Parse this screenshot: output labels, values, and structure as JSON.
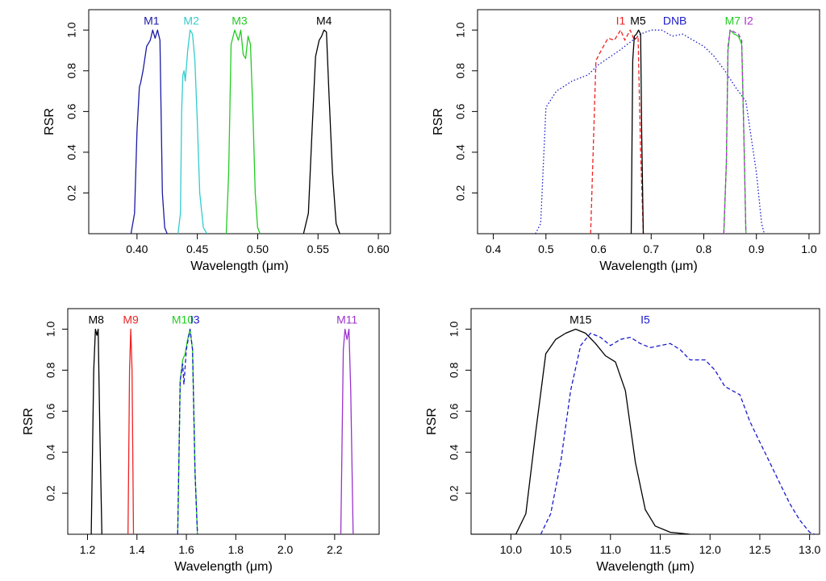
{
  "chart_data": [
    {
      "type": "line",
      "xlabel": "Wavelength (μm)",
      "ylabel": "RSR",
      "xlim": [
        0.36,
        0.61
      ],
      "ylim": [
        0,
        1.1
      ],
      "xticks": [
        0.4,
        0.45,
        0.5,
        0.55,
        0.6
      ],
      "xtick_labels": [
        "0.40",
        "0.45",
        "0.50",
        "0.55",
        "0.60"
      ],
      "yticks": [
        0.2,
        0.4,
        0.6,
        0.8,
        1.0
      ],
      "ytick_labels": [
        "0.2",
        "0.4",
        "0.6",
        "0.8",
        "1.0"
      ],
      "series": [
        {
          "name": "M1",
          "color": "#1a1aa6",
          "dash": "solid",
          "label_at": [
            0.412,
            1.0
          ],
          "points": [
            [
              0.395,
              0
            ],
            [
              0.398,
              0.1
            ],
            [
              0.4,
              0.5
            ],
            [
              0.402,
              0.72
            ],
            [
              0.403,
              0.74
            ],
            [
              0.405,
              0.8
            ],
            [
              0.408,
              0.92
            ],
            [
              0.411,
              0.95
            ],
            [
              0.413,
              1.0
            ],
            [
              0.415,
              0.96
            ],
            [
              0.417,
              1.0
            ],
            [
              0.419,
              0.95
            ],
            [
              0.421,
              0.2
            ],
            [
              0.423,
              0.03
            ],
            [
              0.425,
              0
            ]
          ]
        },
        {
          "name": "M2",
          "color": "#33cccc",
          "dash": "solid",
          "label_at": [
            0.445,
            1.0
          ],
          "points": [
            [
              0.434,
              0
            ],
            [
              0.436,
              0.1
            ],
            [
              0.437,
              0.6
            ],
            [
              0.438,
              0.78
            ],
            [
              0.439,
              0.8
            ],
            [
              0.44,
              0.75
            ],
            [
              0.442,
              0.9
            ],
            [
              0.444,
              1.0
            ],
            [
              0.446,
              0.98
            ],
            [
              0.448,
              0.85
            ],
            [
              0.45,
              0.55
            ],
            [
              0.452,
              0.2
            ],
            [
              0.455,
              0.03
            ],
            [
              0.458,
              0
            ]
          ]
        },
        {
          "name": "M3",
          "color": "#22cc22",
          "dash": "solid",
          "label_at": [
            0.485,
            1.0
          ],
          "points": [
            [
              0.474,
              0
            ],
            [
              0.476,
              0.3
            ],
            [
              0.478,
              0.93
            ],
            [
              0.481,
              1.0
            ],
            [
              0.484,
              0.95
            ],
            [
              0.486,
              1.0
            ],
            [
              0.488,
              0.88
            ],
            [
              0.49,
              0.86
            ],
            [
              0.492,
              0.97
            ],
            [
              0.494,
              0.93
            ],
            [
              0.496,
              0.6
            ],
            [
              0.498,
              0.2
            ],
            [
              0.5,
              0.03
            ],
            [
              0.502,
              0
            ]
          ]
        },
        {
          "name": "M4",
          "color": "#000000",
          "dash": "solid",
          "label_at": [
            0.555,
            1.0
          ],
          "points": [
            [
              0.538,
              0
            ],
            [
              0.542,
              0.1
            ],
            [
              0.545,
              0.5
            ],
            [
              0.548,
              0.87
            ],
            [
              0.551,
              0.95
            ],
            [
              0.553,
              0.97
            ],
            [
              0.555,
              1.0
            ],
            [
              0.557,
              0.99
            ],
            [
              0.559,
              0.7
            ],
            [
              0.562,
              0.3
            ],
            [
              0.565,
              0.05
            ],
            [
              0.568,
              0
            ]
          ]
        }
      ]
    },
    {
      "type": "line",
      "xlabel": "Wavelength (μm)",
      "ylabel": "RSR",
      "xlim": [
        0.37,
        1.02
      ],
      "ylim": [
        0,
        1.1
      ],
      "xticks": [
        0.4,
        0.5,
        0.6,
        0.7,
        0.8,
        0.9,
        1.0
      ],
      "xtick_labels": [
        "0.4",
        "0.5",
        "0.6",
        "0.7",
        "0.8",
        "0.9",
        "1.0"
      ],
      "yticks": [
        0.2,
        0.4,
        0.6,
        0.8,
        1.0
      ],
      "ytick_labels": [
        "0.2",
        "0.4",
        "0.6",
        "0.8",
        "1.0"
      ],
      "series": [
        {
          "name": "DNB",
          "color": "#1a1acc",
          "dash": "1.5,2.5",
          "label_at": [
            0.745,
            1.0
          ],
          "points": [
            [
              0.48,
              0
            ],
            [
              0.49,
              0.05
            ],
            [
              0.5,
              0.62
            ],
            [
              0.52,
              0.7
            ],
            [
              0.55,
              0.75
            ],
            [
              0.58,
              0.78
            ],
            [
              0.6,
              0.83
            ],
            [
              0.64,
              0.9
            ],
            [
              0.68,
              0.98
            ],
            [
              0.7,
              1.0
            ],
            [
              0.72,
              1.0
            ],
            [
              0.74,
              0.97
            ],
            [
              0.76,
              0.98
            ],
            [
              0.78,
              0.95
            ],
            [
              0.8,
              0.92
            ],
            [
              0.82,
              0.87
            ],
            [
              0.84,
              0.8
            ],
            [
              0.86,
              0.72
            ],
            [
              0.88,
              0.65
            ],
            [
              0.9,
              0.3
            ],
            [
              0.91,
              0.05
            ],
            [
              0.915,
              0
            ]
          ]
        },
        {
          "name": "I1",
          "color": "#ee2222",
          "dash": "5,3",
          "label_at": [
            0.642,
            1.0
          ],
          "points": [
            [
              0.585,
              0
            ],
            [
              0.595,
              0.85
            ],
            [
              0.605,
              0.9
            ],
            [
              0.618,
              0.96
            ],
            [
              0.63,
              0.95
            ],
            [
              0.642,
              1.0
            ],
            [
              0.65,
              0.95
            ],
            [
              0.66,
              1.0
            ],
            [
              0.668,
              0.95
            ],
            [
              0.675,
              0.97
            ],
            [
              0.68,
              0.4
            ],
            [
              0.685,
              0
            ]
          ]
        },
        {
          "name": "M5",
          "color": "#000000",
          "dash": "solid",
          "label_at": [
            0.675,
            1.0
          ],
          "points": [
            [
              0.662,
              0
            ],
            [
              0.665,
              0.85
            ],
            [
              0.668,
              0.97
            ],
            [
              0.672,
              0.98
            ],
            [
              0.676,
              1.0
            ],
            [
              0.68,
              0.98
            ],
            [
              0.682,
              0.5
            ],
            [
              0.685,
              0
            ]
          ]
        },
        {
          "name": "M7",
          "color": "#22cc22",
          "dash": "solid",
          "label_at": [
            0.855,
            1.0
          ],
          "points": [
            [
              0.838,
              0
            ],
            [
              0.843,
              0.35
            ],
            [
              0.846,
              0.9
            ],
            [
              0.85,
              1.0
            ],
            [
              0.858,
              0.98
            ],
            [
              0.866,
              0.97
            ],
            [
              0.872,
              0.93
            ],
            [
              0.876,
              0.5
            ],
            [
              0.88,
              0
            ]
          ]
        },
        {
          "name": "I2",
          "color": "#aa33cc",
          "dash": "5,3",
          "label_at": [
            0.885,
            1.0
          ],
          "points": [
            [
              0.838,
              0
            ],
            [
              0.843,
              0.35
            ],
            [
              0.846,
              0.92
            ],
            [
              0.85,
              1.0
            ],
            [
              0.858,
              0.99
            ],
            [
              0.866,
              0.98
            ],
            [
              0.872,
              0.95
            ],
            [
              0.876,
              0.5
            ],
            [
              0.88,
              0
            ]
          ]
        }
      ]
    },
    {
      "type": "line",
      "xlabel": "Wavelength (μm)",
      "ylabel": "RSR",
      "xlim": [
        1.12,
        2.38
      ],
      "ylim": [
        0,
        1.1
      ],
      "xticks": [
        1.2,
        1.4,
        1.6,
        1.8,
        2.0,
        2.2
      ],
      "xtick_labels": [
        "1.2",
        "1.4",
        "1.6",
        "1.8",
        "2.0",
        "2.2"
      ],
      "yticks": [
        0.2,
        0.4,
        0.6,
        0.8,
        1.0
      ],
      "ytick_labels": [
        "0.2",
        "0.4",
        "0.6",
        "0.8",
        "1.0"
      ],
      "series": [
        {
          "name": "M8",
          "color": "#000000",
          "dash": "solid",
          "label_at": [
            1.235,
            1.0
          ],
          "points": [
            [
              1.215,
              0
            ],
            [
              1.225,
              0.8
            ],
            [
              1.232,
              1.0
            ],
            [
              1.238,
              0.97
            ],
            [
              1.243,
              1.0
            ],
            [
              1.25,
              0.5
            ],
            [
              1.258,
              0
            ]
          ]
        },
        {
          "name": "M9",
          "color": "#ee2222",
          "dash": "solid",
          "label_at": [
            1.375,
            1.0
          ],
          "points": [
            [
              1.364,
              0
            ],
            [
              1.37,
              0.8
            ],
            [
              1.375,
              1.0
            ],
            [
              1.38,
              0.8
            ],
            [
              1.386,
              0
            ]
          ]
        },
        {
          "name": "M10",
          "color": "#22cc22",
          "dash": "solid",
          "label_at": [
            1.585,
            1.0
          ],
          "points": [
            [
              1.565,
              0
            ],
            [
              1.575,
              0.75
            ],
            [
              1.585,
              0.85
            ],
            [
              1.595,
              0.88
            ],
            [
              1.605,
              0.95
            ],
            [
              1.615,
              1.0
            ],
            [
              1.625,
              0.9
            ],
            [
              1.635,
              0.3
            ],
            [
              1.645,
              0
            ]
          ]
        },
        {
          "name": "I3",
          "color": "#1a1acc",
          "dash": "5,3",
          "label_at": [
            1.635,
            1.0
          ],
          "points": [
            [
              1.565,
              0
            ],
            [
              1.575,
              0.75
            ],
            [
              1.585,
              0.83
            ],
            [
              1.59,
              0.73
            ],
            [
              1.6,
              0.9
            ],
            [
              1.615,
              1.0
            ],
            [
              1.625,
              0.9
            ],
            [
              1.635,
              0.3
            ],
            [
              1.645,
              0
            ]
          ]
        },
        {
          "name": "M11",
          "color": "#9933cc",
          "dash": "solid",
          "label_at": [
            2.25,
            1.0
          ],
          "points": [
            [
              2.225,
              0
            ],
            [
              2.235,
              0.9
            ],
            [
              2.242,
              1.0
            ],
            [
              2.25,
              0.95
            ],
            [
              2.258,
              1.0
            ],
            [
              2.265,
              0.7
            ],
            [
              2.275,
              0
            ]
          ]
        }
      ]
    },
    {
      "type": "line",
      "xlabel": "Wavelength (μm)",
      "ylabel": "RSR",
      "xlim": [
        9.6,
        13.1
      ],
      "ylim": [
        0,
        1.1
      ],
      "xticks": [
        10.0,
        10.5,
        11.0,
        11.5,
        12.0,
        12.5,
        13.0
      ],
      "xtick_labels": [
        "10.0",
        "10.5",
        "11.0",
        "11.5",
        "12.0",
        "12.5",
        "13.0"
      ],
      "yticks": [
        0.2,
        0.4,
        0.6,
        0.8,
        1.0
      ],
      "ytick_labels": [
        "0.2",
        "0.4",
        "0.6",
        "0.8",
        "1.0"
      ],
      "series": [
        {
          "name": "M15",
          "color": "#000000",
          "dash": "solid",
          "label_at": [
            10.7,
            1.0
          ],
          "points": [
            [
              9.6,
              0
            ],
            [
              10.05,
              0
            ],
            [
              10.15,
              0.1
            ],
            [
              10.25,
              0.5
            ],
            [
              10.35,
              0.88
            ],
            [
              10.45,
              0.95
            ],
            [
              10.55,
              0.98
            ],
            [
              10.65,
              1.0
            ],
            [
              10.75,
              0.98
            ],
            [
              10.85,
              0.93
            ],
            [
              10.95,
              0.87
            ],
            [
              11.05,
              0.84
            ],
            [
              11.15,
              0.7
            ],
            [
              11.25,
              0.35
            ],
            [
              11.35,
              0.12
            ],
            [
              11.45,
              0.04
            ],
            [
              11.6,
              0.01
            ],
            [
              11.8,
              0
            ]
          ]
        },
        {
          "name": "I5",
          "color": "#1a1acc",
          "dash": "5,3",
          "label_at": [
            11.35,
            1.0
          ],
          "points": [
            [
              10.3,
              0
            ],
            [
              10.4,
              0.1
            ],
            [
              10.5,
              0.35
            ],
            [
              10.6,
              0.7
            ],
            [
              10.7,
              0.92
            ],
            [
              10.8,
              0.98
            ],
            [
              10.9,
              0.96
            ],
            [
              11.0,
              0.92
            ],
            [
              11.1,
              0.95
            ],
            [
              11.2,
              0.96
            ],
            [
              11.3,
              0.93
            ],
            [
              11.4,
              0.91
            ],
            [
              11.5,
              0.92
            ],
            [
              11.6,
              0.93
            ],
            [
              11.7,
              0.9
            ],
            [
              11.8,
              0.85
            ],
            [
              11.95,
              0.85
            ],
            [
              12.05,
              0.8
            ],
            [
              12.15,
              0.72
            ],
            [
              12.3,
              0.68
            ],
            [
              12.4,
              0.55
            ],
            [
              12.5,
              0.45
            ],
            [
              12.6,
              0.35
            ],
            [
              12.7,
              0.25
            ],
            [
              12.8,
              0.15
            ],
            [
              12.9,
              0.07
            ],
            [
              13.0,
              0.01
            ],
            [
              13.05,
              0
            ]
          ]
        }
      ]
    }
  ]
}
